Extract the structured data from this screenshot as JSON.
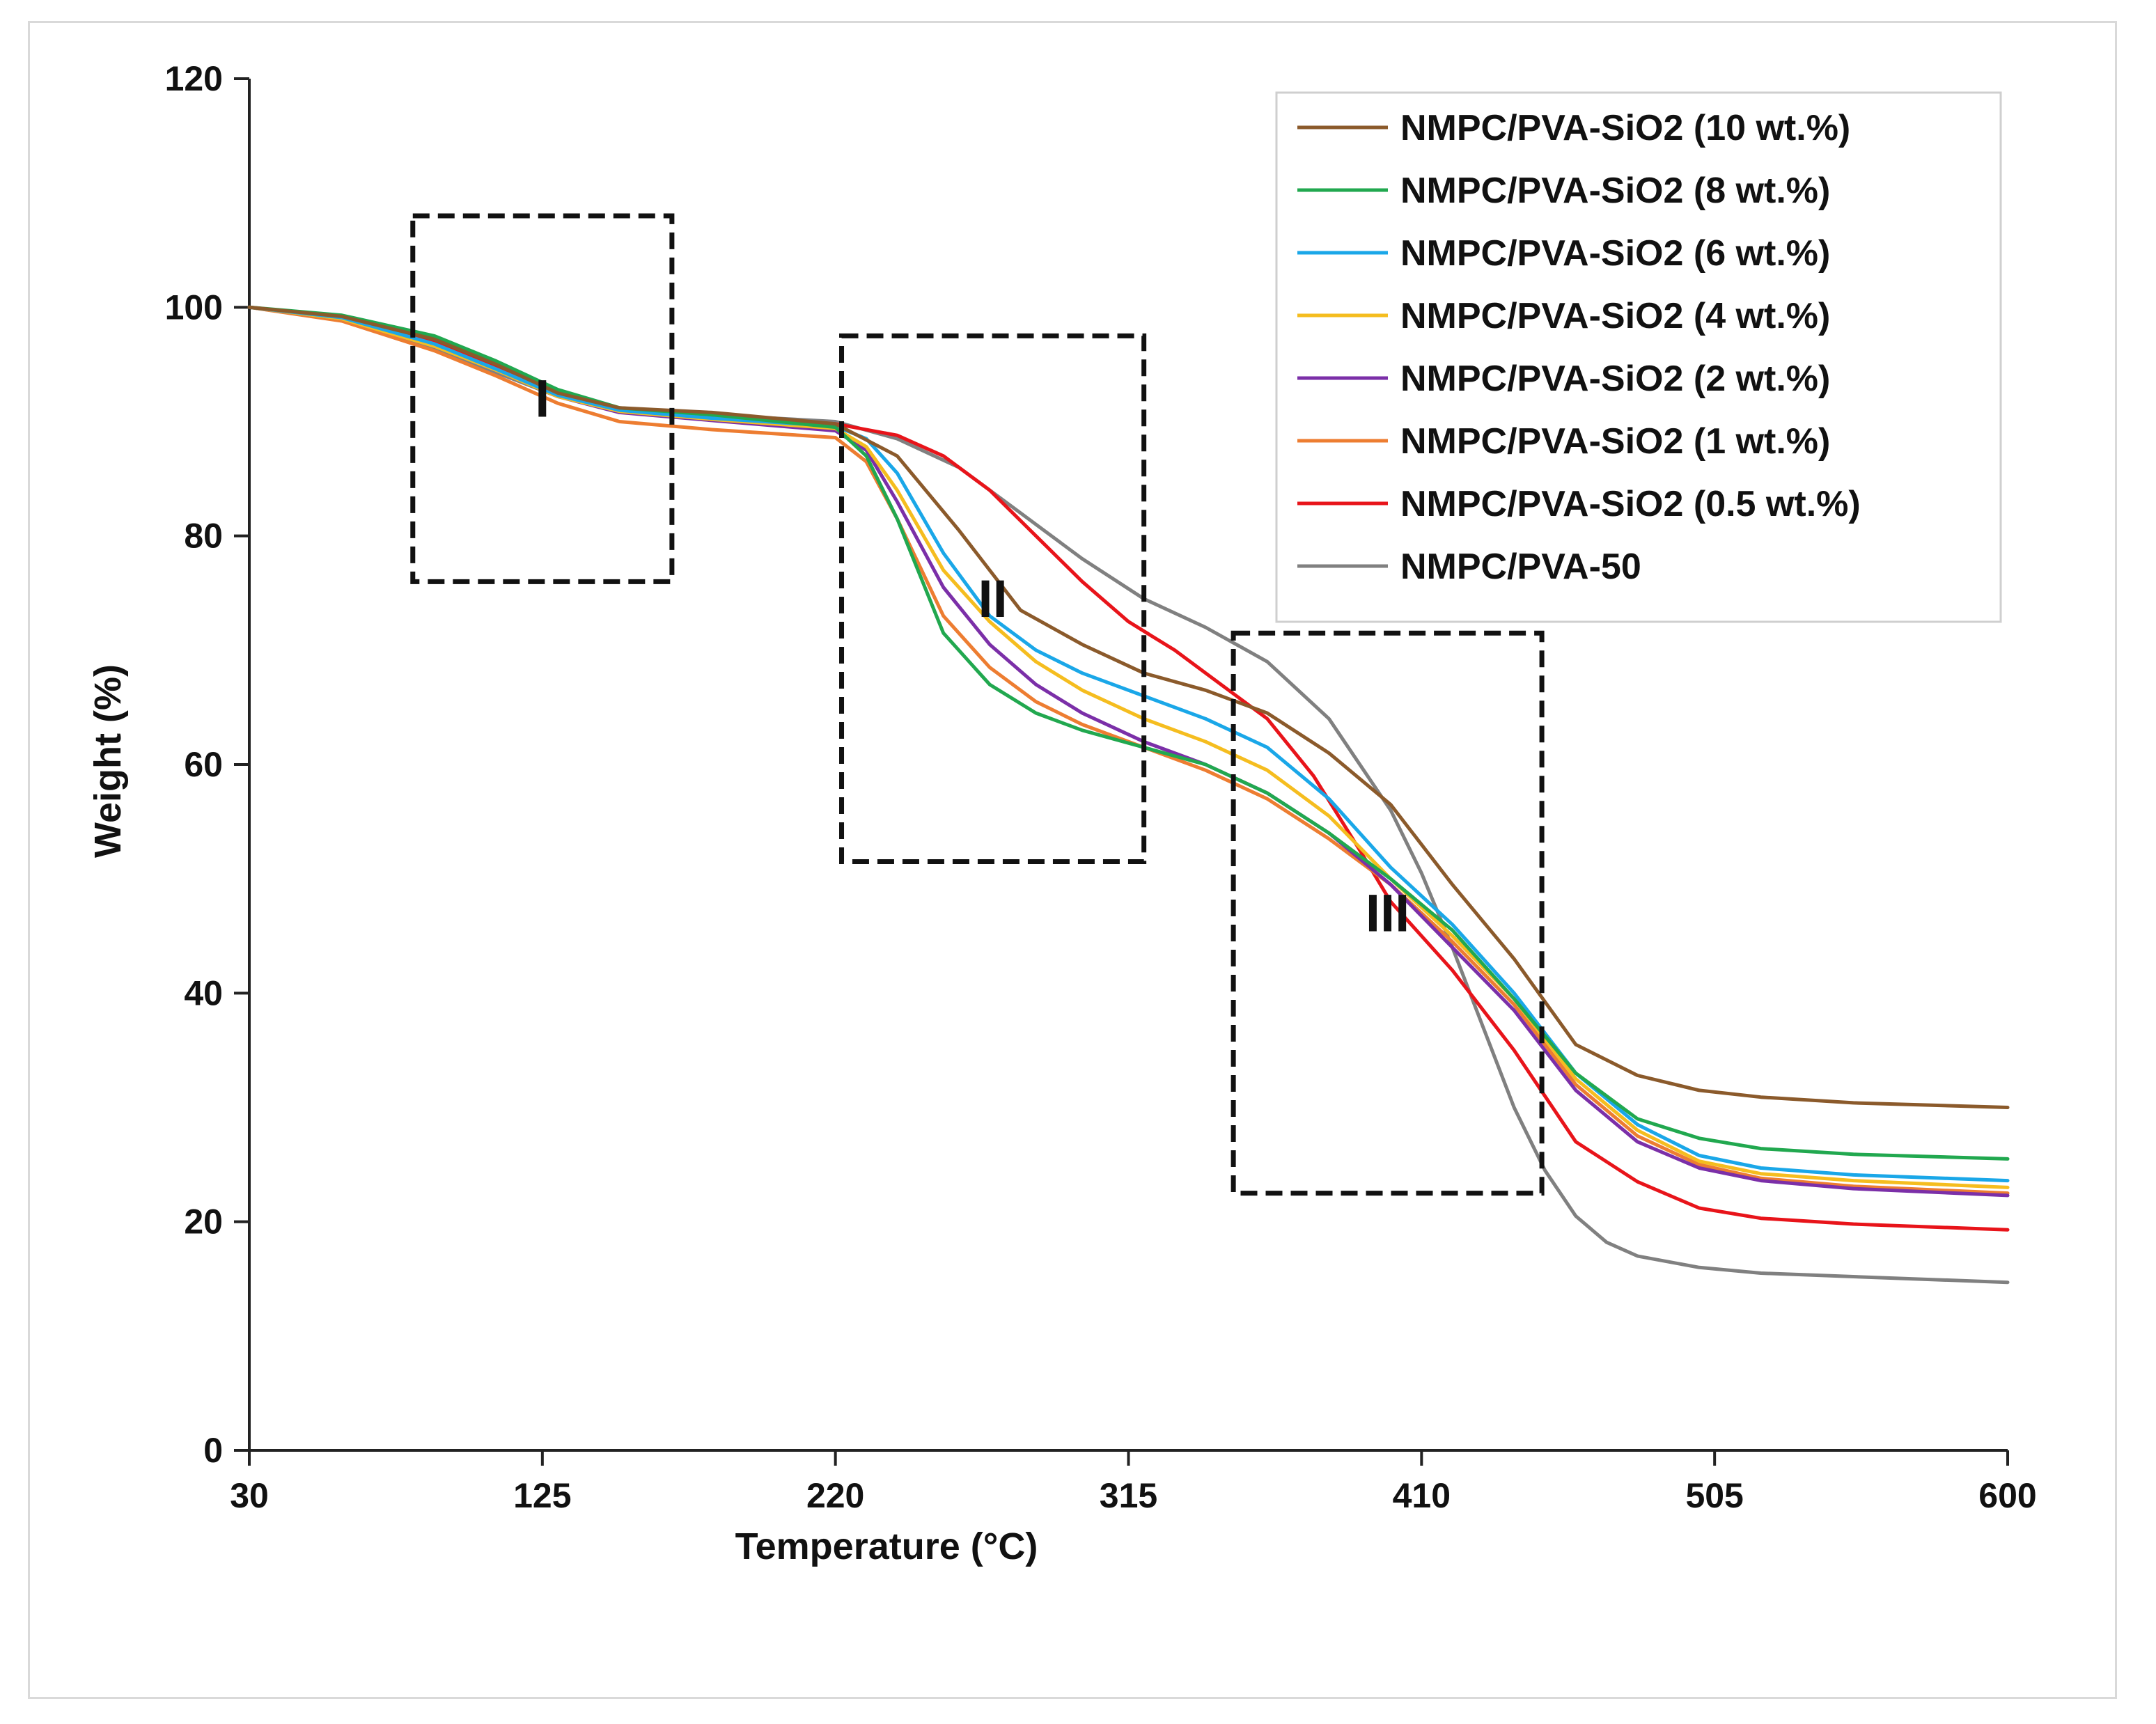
{
  "chart_data": {
    "type": "line",
    "title": "",
    "xlabel": "Temperature (°C)",
    "ylabel": "Weight (%)",
    "xlim": [
      30,
      600
    ],
    "ylim": [
      0,
      120
    ],
    "xticks": [
      30,
      125,
      220,
      315,
      410,
      505,
      600
    ],
    "yticks": [
      0,
      20,
      40,
      60,
      80,
      100,
      120
    ],
    "grid": false,
    "legend_position": "top-right",
    "series": [
      {
        "name": "NMPC/PVA-SiO2 (10 wt.%)",
        "color": "#8B5A2B",
        "x": [
          30,
          60,
          90,
          110,
          130,
          150,
          180,
          220,
          240,
          260,
          280,
          300,
          320,
          340,
          360,
          380,
          400,
          420,
          440,
          460,
          480,
          500,
          520,
          550,
          600
        ],
        "y": [
          100,
          99.2,
          97.2,
          95.0,
          92.5,
          91.2,
          90.8,
          89.8,
          87.0,
          80.5,
          73.5,
          70.5,
          68.0,
          66.5,
          64.5,
          61.0,
          56.5,
          49.5,
          43.0,
          35.5,
          32.8,
          31.5,
          30.9,
          30.4,
          30.0
        ]
      },
      {
        "name": "NMPC/PVA-SiO2 (8 wt.%)",
        "color": "#21A84F",
        "x": [
          30,
          60,
          90,
          110,
          130,
          150,
          180,
          220,
          230,
          240,
          255,
          270,
          285,
          300,
          320,
          340,
          360,
          380,
          400,
          420,
          440,
          460,
          480,
          500,
          520,
          550,
          600
        ],
        "y": [
          100,
          99.3,
          97.5,
          95.3,
          92.8,
          91.2,
          90.6,
          89.5,
          87.0,
          81.5,
          71.5,
          67.0,
          64.5,
          63.0,
          61.5,
          60.0,
          57.5,
          54.0,
          50.0,
          45.5,
          39.5,
          33.0,
          29.0,
          27.3,
          26.4,
          25.9,
          25.5
        ]
      },
      {
        "name": "NMPC/PVA-SiO2 (6 wt.%)",
        "color": "#1AA7E8",
        "x": [
          30,
          60,
          90,
          110,
          130,
          150,
          180,
          220,
          230,
          240,
          255,
          270,
          285,
          300,
          320,
          340,
          360,
          380,
          400,
          420,
          440,
          460,
          480,
          500,
          520,
          550,
          600
        ],
        "y": [
          100,
          99.1,
          96.8,
          94.6,
          92.3,
          91.0,
          90.3,
          89.6,
          88.5,
          85.5,
          78.5,
          73.0,
          70.0,
          68.0,
          66.0,
          64.0,
          61.5,
          57.0,
          51.0,
          46.0,
          40.0,
          33.0,
          28.5,
          25.8,
          24.7,
          24.1,
          23.6
        ]
      },
      {
        "name": "NMPC/PVA-SiO2 (4 wt.%)",
        "color": "#F5BD1F",
        "x": [
          30,
          60,
          90,
          110,
          130,
          150,
          180,
          220,
          230,
          240,
          255,
          270,
          285,
          300,
          320,
          340,
          360,
          380,
          400,
          420,
          440,
          460,
          480,
          500,
          520,
          550,
          600
        ],
        "y": [
          100,
          99.0,
          96.6,
          94.5,
          92.2,
          90.9,
          90.2,
          89.4,
          87.8,
          84.0,
          77.0,
          72.5,
          69.0,
          66.5,
          64.0,
          62.0,
          59.5,
          55.5,
          50.0,
          45.0,
          39.5,
          32.5,
          28.0,
          25.3,
          24.2,
          23.6,
          23.0
        ]
      },
      {
        "name": "NMPC/PVA-SiO2 (2 wt.%)",
        "color": "#7B2FA8",
        "x": [
          30,
          60,
          90,
          110,
          130,
          150,
          180,
          220,
          230,
          240,
          255,
          270,
          285,
          300,
          320,
          340,
          360,
          380,
          400,
          420,
          440,
          460,
          480,
          500,
          520,
          550,
          600
        ],
        "y": [
          100,
          99.0,
          96.7,
          94.5,
          92.2,
          90.8,
          90.1,
          89.2,
          87.5,
          83.0,
          75.5,
          70.5,
          67.0,
          64.5,
          62.0,
          60.0,
          57.5,
          54.0,
          49.5,
          44.0,
          38.5,
          31.5,
          27.0,
          24.7,
          23.6,
          22.9,
          22.3
        ]
      },
      {
        "name": "NMPC/PVA-SiO2 (1 wt.%)",
        "color": "#ED7D31",
        "x": [
          30,
          60,
          90,
          110,
          130,
          150,
          180,
          220,
          230,
          240,
          255,
          270,
          285,
          300,
          320,
          340,
          360,
          380,
          400,
          420,
          440,
          460,
          480,
          500,
          520,
          550,
          600
        ],
        "y": [
          100,
          98.8,
          96.2,
          94.0,
          91.6,
          90.0,
          89.3,
          88.6,
          86.5,
          81.5,
          73.0,
          68.5,
          65.5,
          63.5,
          61.5,
          59.5,
          57.0,
          53.5,
          49.5,
          44.5,
          39.0,
          32.0,
          27.5,
          25.0,
          23.8,
          23.1,
          22.5
        ]
      },
      {
        "name": "NMPC/PVA-SiO2 (0.5 wt.%)",
        "color": "#E8141A",
        "x": [
          30,
          60,
          90,
          110,
          130,
          150,
          180,
          220,
          240,
          255,
          270,
          285,
          300,
          315,
          330,
          345,
          360,
          375,
          390,
          400,
          420,
          440,
          460,
          480,
          500,
          520,
          550,
          600
        ],
        "y": [
          100,
          99.0,
          96.9,
          94.7,
          92.4,
          91.0,
          90.5,
          89.8,
          88.8,
          87.0,
          84.0,
          80.0,
          76.0,
          72.5,
          70.0,
          67.0,
          64.0,
          59.0,
          52.5,
          48.0,
          42.0,
          35.0,
          27.0,
          23.5,
          21.2,
          20.3,
          19.8,
          19.3
        ]
      },
      {
        "name": "NMPC/PVA-50",
        "color": "#808080",
        "x": [
          30,
          60,
          90,
          110,
          130,
          150,
          180,
          220,
          240,
          260,
          280,
          300,
          320,
          340,
          360,
          380,
          400,
          410,
          420,
          430,
          440,
          450,
          460,
          470,
          480,
          500,
          520,
          550,
          600
        ],
        "y": [
          100,
          98.9,
          96.3,
          94.3,
          92.2,
          91.0,
          90.6,
          90.0,
          88.5,
          86.0,
          82.0,
          78.0,
          74.5,
          72.0,
          69.0,
          64.0,
          56.0,
          50.5,
          44.0,
          37.0,
          30.0,
          24.5,
          20.5,
          18.2,
          17.0,
          16.0,
          15.5,
          15.2,
          14.7
        ]
      }
    ],
    "annotations": [
      {
        "label": "I",
        "x_range": [
          83,
          167
        ],
        "y_range": [
          76,
          108
        ]
      },
      {
        "label": "II",
        "x_range": [
          222,
          320
        ],
        "y_range": [
          51.5,
          97.5
        ]
      },
      {
        "label": "III",
        "x_range": [
          349,
          449
        ],
        "y_range": [
          22.5,
          71.5
        ]
      }
    ]
  }
}
